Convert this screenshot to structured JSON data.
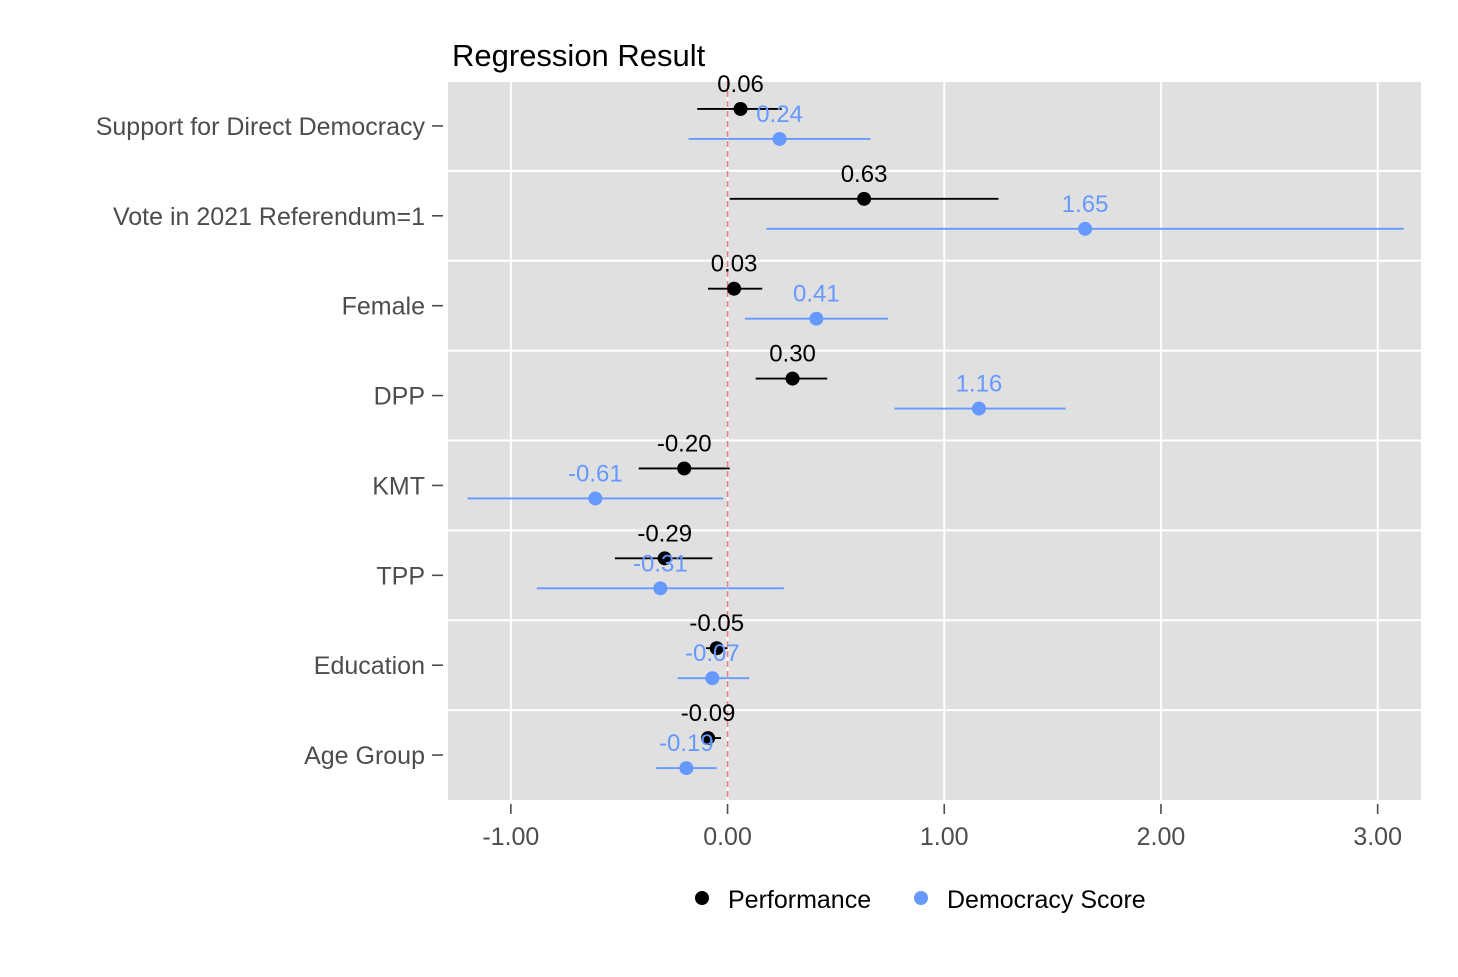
{
  "chart_data": {
    "type": "scatter",
    "subtype": "coefficient-plot",
    "title": "Regression Result",
    "xlabel": "",
    "ylabel": "",
    "xlim": [
      -1.29,
      3.2
    ],
    "x_ticks": [
      -1.0,
      0.0,
      1.0,
      2.0,
      3.0
    ],
    "x_tick_labels": [
      "-1.00",
      "0.00",
      "1.00",
      "2.00",
      "3.00"
    ],
    "reference_line": 0,
    "reference_line_color": "#e08080",
    "panel_background": "#e0e0e0",
    "grid": true,
    "legend_position": "bottom",
    "categories": [
      "Support for Direct Democracy",
      "Vote in 2021 Referendum=1",
      "Female",
      "DPP",
      "KMT",
      "TPP",
      "Education",
      "Age Group"
    ],
    "series": [
      {
        "name": "Performance",
        "color": "#000000",
        "estimates": [
          0.06,
          0.63,
          0.03,
          0.3,
          -0.2,
          -0.29,
          -0.05,
          -0.09
        ],
        "labels": [
          "0.06",
          "0.63",
          "0.03",
          "0.30",
          "-0.20",
          "-0.29",
          "-0.05",
          "-0.09"
        ],
        "ci_low": [
          -0.14,
          0.01,
          -0.09,
          0.13,
          -0.41,
          -0.52,
          -0.1,
          -0.12
        ],
        "ci_high": [
          0.25,
          1.25,
          0.16,
          0.46,
          0.01,
          -0.07,
          0.0,
          -0.03
        ]
      },
      {
        "name": "Democracy Score",
        "color": "#6699ff",
        "estimates": [
          0.24,
          1.65,
          0.41,
          1.16,
          -0.61,
          -0.31,
          -0.07,
          -0.19
        ],
        "labels": [
          "0.24",
          "1.65",
          "0.41",
          "1.16",
          "-0.61",
          "-0.31",
          "-0.07",
          "-0.19"
        ],
        "ci_low": [
          -0.18,
          0.18,
          0.08,
          0.77,
          -1.2,
          -0.88,
          -0.23,
          -0.33
        ],
        "ci_high": [
          0.66,
          3.12,
          0.74,
          1.56,
          -0.02,
          0.26,
          0.1,
          -0.05
        ]
      }
    ]
  }
}
